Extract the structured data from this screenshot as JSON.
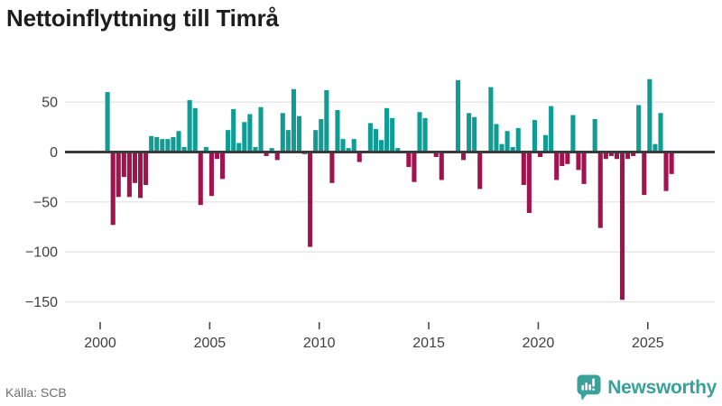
{
  "header": {
    "title": "Nettoinflyttning till Timrå"
  },
  "footer": {
    "source": "Källa: SCB",
    "brand": "Newsworthy"
  },
  "colors": {
    "positive": "#0e9c94",
    "negative": "#a0134f",
    "brand": "#3ba29a",
    "grid": "#e4e4e4",
    "zero_line": "#3b3b3b",
    "tick_text": "#3f3f3f",
    "tick_mark": "#4a4a4a",
    "source_text": "#6f6f6f",
    "title_text": "#1d1d1d"
  },
  "chart_data": {
    "type": "bar",
    "title": "Nettoinflyttning till Timrå",
    "frequency": "quarterly",
    "x_start_year": 2000,
    "values": [
      1,
      60,
      -73,
      -45,
      -25,
      -45,
      -31,
      -46,
      -33,
      16,
      15,
      13,
      13,
      15,
      21,
      5,
      52,
      44,
      -53,
      5,
      -44,
      -7,
      -27,
      22,
      43,
      9,
      30,
      38,
      5,
      45,
      -4,
      4,
      -8,
      39,
      22,
      63,
      36,
      -2,
      -95,
      22,
      33,
      62,
      -31,
      42,
      13,
      4,
      13,
      -10,
      1,
      29,
      23,
      12,
      44,
      34,
      4,
      1,
      -15,
      -30,
      40,
      34,
      1,
      -5,
      -28,
      1,
      1,
      72,
      -8,
      39,
      35,
      -37,
      1,
      65,
      28,
      8,
      21,
      5,
      24,
      -33,
      -61,
      32,
      -5,
      17,
      46,
      -28,
      -14,
      -12,
      37,
      -18,
      -32,
      1,
      33,
      -76,
      -7,
      -4,
      -7,
      -148,
      -7,
      -4,
      47,
      -43,
      73,
      8,
      39,
      -39,
      -22
    ],
    "yticks": [
      50,
      0,
      -50,
      -100,
      -150
    ],
    "xticks": [
      2000,
      2005,
      2010,
      2015,
      2020,
      2025
    ],
    "ylim": [
      -160,
      80
    ],
    "grid": true,
    "legend": "none",
    "positive_color": "#0e9c94",
    "negative_color": "#a0134f"
  }
}
